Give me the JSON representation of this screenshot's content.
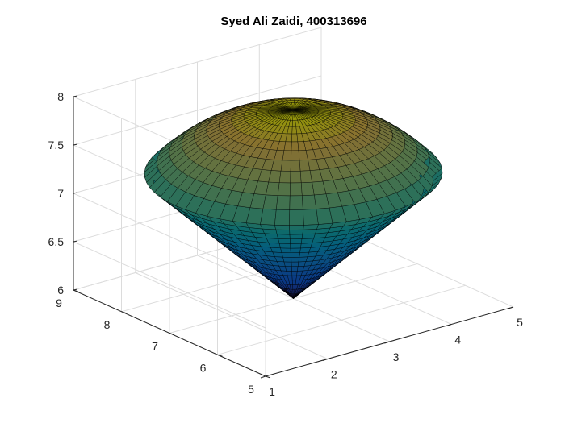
{
  "chart_data": {
    "type": "surface3d",
    "title": "Syed Ali Zaidi, 400313696",
    "xlabel": "",
    "ylabel": "",
    "zlabel": "",
    "grid": true,
    "colormap": "parula",
    "x_ticks": [
      1,
      2,
      3,
      4,
      5
    ],
    "y_ticks": [
      5,
      6,
      7,
      8,
      9
    ],
    "z_ticks": [
      6,
      6.5,
      7,
      7.5,
      8
    ],
    "x_tick_labels": [
      "1",
      "2",
      "3",
      "4",
      "5"
    ],
    "y_tick_labels": [
      "5",
      "6",
      "7",
      "8",
      "9"
    ],
    "z_tick_labels": [
      "6",
      "6.5",
      "7",
      "7.5",
      "8"
    ],
    "xlim": [
      1,
      5
    ],
    "ylim": [
      5,
      9
    ],
    "zlim": [
      6,
      8
    ],
    "surface": {
      "shape": "ice-cream cone: cone capped by a spherical dome",
      "apex": {
        "x": 3,
        "y": 7,
        "z": 6
      },
      "rim_radius": 1.9,
      "rim_z": 7.3,
      "top_z": 7.95
    }
  }
}
